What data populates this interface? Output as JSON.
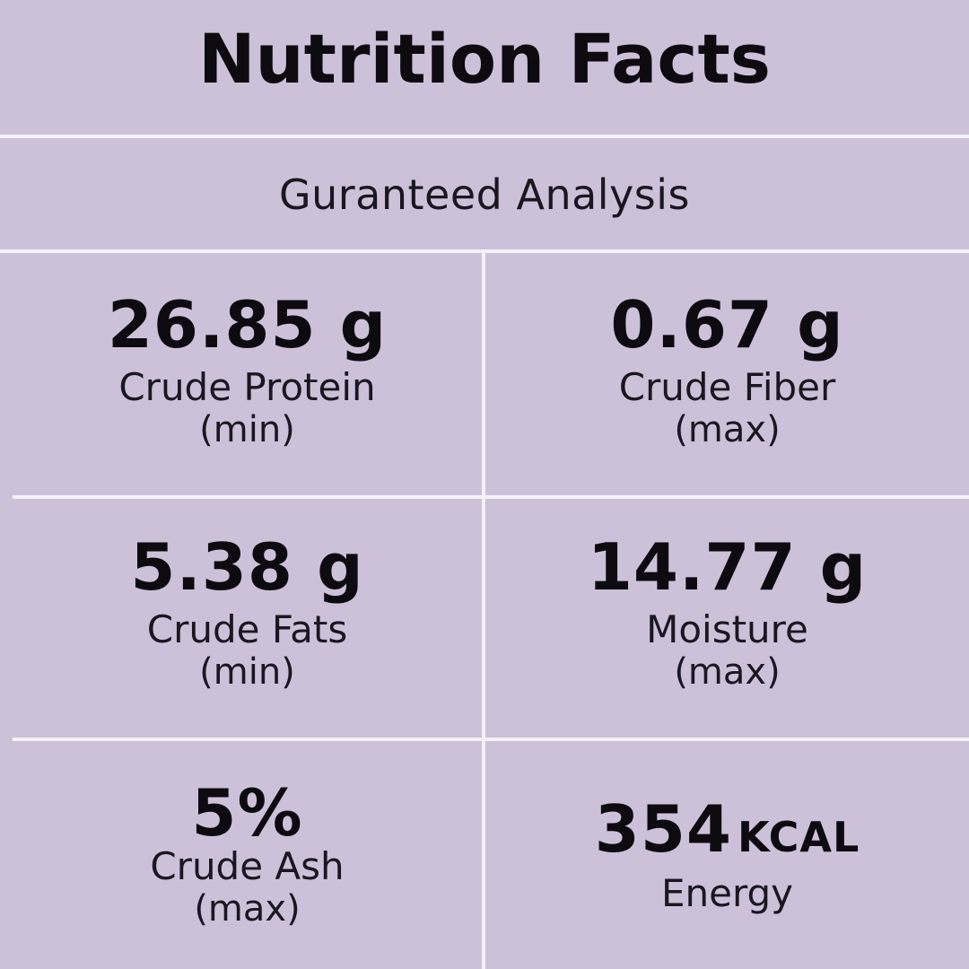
{
  "title": "Nutrition Facts",
  "subtitle": "Guranteed Analysis",
  "nutrients": [
    {
      "value": "26.85 g",
      "name": "Crude Protein",
      "qualifier": "(min)"
    },
    {
      "value": "0.67 g",
      "name": "Crude Fiber",
      "qualifier": "(max)"
    },
    {
      "value": "5.38 g",
      "name": "Crude Fats",
      "qualifier": "(min)"
    },
    {
      "value": "14.77 g",
      "name": "Moisture",
      "qualifier": "(max)"
    },
    {
      "value": "5%",
      "name": "Crude Ash",
      "qualifier": "(max)"
    },
    {
      "value": "354",
      "unit": "KCAL",
      "name": "Energy"
    }
  ],
  "colors": {
    "background": "#cdc1d9",
    "divider": "#f4f1f7",
    "text": "#0d0b10"
  }
}
